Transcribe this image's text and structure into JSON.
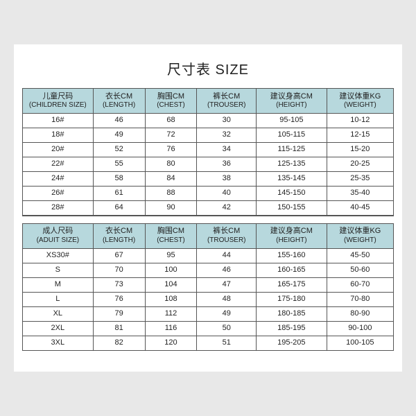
{
  "title": "尺寸表 SIZE",
  "colors": {
    "header_bg": "#b7d8dd",
    "border": "#555555",
    "page_bg": "#e8e8e8",
    "sheet_bg": "#ffffff",
    "text": "#222222"
  },
  "columnWidths": [
    "19%",
    "14%",
    "14%",
    "16%",
    "19%",
    "18%"
  ],
  "children": {
    "headers": [
      {
        "cn": "儿童尺码",
        "en": "(CHILDREN SIZE)"
      },
      {
        "cn": "衣长CM",
        "en": "(LENGTH)"
      },
      {
        "cn": "胸围CM",
        "en": "(CHEST)"
      },
      {
        "cn": "裤长CM",
        "en": "(TROUSER)"
      },
      {
        "cn": "建议身高CM",
        "en": "(HEIGHT)"
      },
      {
        "cn": "建议体重KG",
        "en": "(WEIGHT)"
      }
    ],
    "rows": [
      [
        "16#",
        "46",
        "68",
        "30",
        "95-105",
        "10-12"
      ],
      [
        "18#",
        "49",
        "72",
        "32",
        "105-115",
        "12-15"
      ],
      [
        "20#",
        "52",
        "76",
        "34",
        "115-125",
        "15-20"
      ],
      [
        "22#",
        "55",
        "80",
        "36",
        "125-135",
        "20-25"
      ],
      [
        "24#",
        "58",
        "84",
        "38",
        "135-145",
        "25-35"
      ],
      [
        "26#",
        "61",
        "88",
        "40",
        "145-150",
        "35-40"
      ],
      [
        "28#",
        "64",
        "90",
        "42",
        "150-155",
        "40-45"
      ]
    ]
  },
  "adult": {
    "headers": [
      {
        "cn": "成人尺码",
        "en": "(ADUIT SIZE)"
      },
      {
        "cn": "衣长CM",
        "en": "(LENGTH)"
      },
      {
        "cn": "胸围CM",
        "en": "(CHEST)"
      },
      {
        "cn": "裤长CM",
        "en": "(TROUSER)"
      },
      {
        "cn": "建议身高CM",
        "en": "(HEIGHT)"
      },
      {
        "cn": "建议体重KG",
        "en": "(WEIGHT)"
      }
    ],
    "rows": [
      [
        "XS30#",
        "67",
        "95",
        "44",
        "155-160",
        "45-50"
      ],
      [
        "S",
        "70",
        "100",
        "46",
        "160-165",
        "50-60"
      ],
      [
        "M",
        "73",
        "104",
        "47",
        "165-175",
        "60-70"
      ],
      [
        "L",
        "76",
        "108",
        "48",
        "175-180",
        "70-80"
      ],
      [
        "XL",
        "79",
        "112",
        "49",
        "180-185",
        "80-90"
      ],
      [
        "2XL",
        "81",
        "116",
        "50",
        "185-195",
        "90-100"
      ],
      [
        "3XL",
        "82",
        "120",
        "51",
        "195-205",
        "100-105"
      ]
    ]
  }
}
